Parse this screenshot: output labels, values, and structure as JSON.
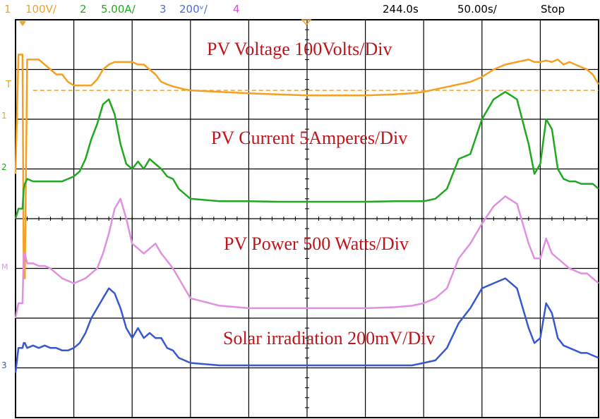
{
  "status_bar": {
    "ch1": {
      "num": "1",
      "scale": "100V/",
      "color": "#f0a030"
    },
    "ch2": {
      "num": "2",
      "scale": "5.00A/",
      "color": "#22aa22"
    },
    "ch3": {
      "num": "3",
      "scale": "200ᵛ/",
      "color": "#4a6ed8"
    },
    "ch4": {
      "num": "4",
      "color": "#d050d0"
    },
    "time_position": "244.0s",
    "timebase": "50.00s/",
    "run_state": "Stop"
  },
  "markers": {
    "ch1": "1",
    "ch2": "2",
    "math": "M",
    "ch3": "3",
    "trigger_level": "T"
  },
  "chart_data": {
    "type": "line",
    "x_divisions": 10,
    "y_divisions": 8,
    "x": [
      0,
      0.05,
      0.1,
      0.12,
      0.14,
      0.16,
      0.2,
      0.3,
      0.4,
      0.5,
      0.6,
      0.7,
      0.8,
      0.9,
      1.0,
      1.1,
      1.2,
      1.3,
      1.4,
      1.5,
      1.6,
      1.7,
      1.8,
      1.9,
      2.0,
      2.1,
      2.2,
      2.3,
      2.4,
      2.5,
      2.6,
      2.7,
      2.8,
      2.9,
      3.0,
      3.5,
      4.0,
      4.5,
      5.0,
      5.5,
      6.0,
      6.5,
      6.8,
      7.0,
      7.2,
      7.4,
      7.6,
      7.8,
      8.0,
      8.2,
      8.4,
      8.6,
      8.8,
      8.9,
      9.0,
      9.1,
      9.2,
      9.3,
      9.4,
      9.5,
      9.6,
      9.7,
      9.8,
      9.9,
      10.0
    ],
    "series": [
      {
        "name": "PV Voltage  100Volts/Div",
        "color": "#f5a020",
        "values": [
          4.9,
          7.3,
          7.3,
          7.3,
          2.8,
          2.8,
          7.2,
          7.2,
          7.2,
          7.1,
          7.0,
          6.9,
          6.9,
          6.75,
          6.68,
          6.68,
          6.68,
          6.68,
          6.8,
          7.0,
          7.1,
          7.15,
          7.15,
          7.15,
          7.15,
          7.1,
          7.1,
          7.0,
          6.9,
          6.75,
          6.7,
          6.66,
          6.63,
          6.6,
          6.58,
          6.55,
          6.52,
          6.5,
          6.48,
          6.48,
          6.48,
          6.5,
          6.52,
          6.55,
          6.6,
          6.65,
          6.7,
          6.75,
          6.85,
          7.0,
          7.1,
          7.15,
          7.2,
          7.15,
          7.15,
          7.18,
          7.15,
          7.2,
          7.1,
          7.15,
          7.1,
          7.05,
          7.0,
          6.9,
          6.7
        ]
      },
      {
        "name": "PV Current 5Amperes/Div",
        "color": "#20a820",
        "values": [
          4.0,
          4.2,
          4.2,
          4.2,
          4.6,
          4.7,
          4.8,
          4.75,
          4.75,
          4.75,
          4.75,
          4.75,
          4.75,
          4.8,
          4.85,
          4.95,
          5.2,
          5.6,
          5.9,
          6.3,
          6.4,
          6.1,
          5.5,
          5.1,
          5.0,
          5.15,
          5.0,
          5.2,
          5.1,
          5.0,
          4.85,
          4.8,
          4.6,
          4.5,
          4.4,
          4.35,
          4.35,
          4.34,
          4.34,
          4.34,
          4.34,
          4.35,
          4.35,
          4.35,
          4.4,
          4.6,
          5.2,
          5.3,
          6.0,
          6.4,
          6.55,
          6.4,
          5.5,
          4.9,
          5.1,
          6.0,
          5.8,
          5.0,
          4.8,
          4.75,
          4.75,
          4.7,
          4.7,
          4.7,
          4.6
        ]
      },
      {
        "name": "PV Power 500 Watts/Div",
        "color": "#e090e0",
        "values": [
          2.0,
          2.3,
          2.3,
          2.3,
          3.3,
          3.3,
          3.1,
          3.1,
          3.05,
          3.05,
          3.0,
          2.9,
          2.8,
          2.75,
          2.7,
          2.75,
          2.8,
          2.9,
          3.0,
          3.3,
          3.7,
          4.2,
          4.4,
          4.0,
          3.5,
          3.4,
          3.3,
          3.4,
          3.5,
          3.3,
          3.15,
          3.0,
          2.8,
          2.6,
          2.4,
          2.25,
          2.2,
          2.2,
          2.2,
          2.2,
          2.2,
          2.22,
          2.25,
          2.3,
          2.4,
          2.6,
          3.2,
          3.5,
          3.9,
          4.25,
          4.45,
          4.3,
          3.5,
          3.2,
          3.2,
          3.6,
          3.3,
          3.2,
          3.1,
          3.0,
          2.95,
          2.9,
          2.9,
          2.8,
          2.7
        ]
      },
      {
        "name": "Solar irradiation 200mV/Div",
        "color": "#3858d0",
        "values": [
          0.9,
          1.4,
          1.4,
          1.4,
          1.5,
          1.5,
          1.4,
          1.45,
          1.4,
          1.45,
          1.4,
          1.4,
          1.35,
          1.35,
          1.4,
          1.5,
          1.7,
          2.0,
          2.2,
          2.4,
          2.6,
          2.5,
          2.2,
          1.8,
          1.6,
          1.8,
          1.6,
          1.7,
          1.6,
          1.6,
          1.4,
          1.35,
          1.2,
          1.15,
          1.1,
          1.05,
          1.05,
          1.05,
          1.05,
          1.05,
          1.05,
          1.05,
          1.05,
          1.1,
          1.15,
          1.4,
          1.9,
          2.2,
          2.6,
          2.7,
          2.8,
          2.6,
          1.8,
          1.5,
          1.6,
          2.3,
          2.1,
          1.6,
          1.45,
          1.4,
          1.35,
          1.3,
          1.3,
          1.25,
          1.2
        ]
      }
    ],
    "trigger_level": 6.58
  }
}
